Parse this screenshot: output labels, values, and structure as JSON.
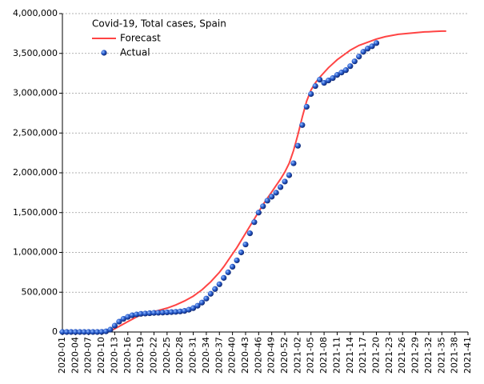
{
  "chart_data": {
    "type": "line",
    "title": "Covid-19, Total cases, Spain",
    "categories": [
      "2020-01",
      null,
      null,
      "2020-04",
      null,
      null,
      "2020-07",
      null,
      null,
      "2020-10",
      null,
      null,
      "2020-13",
      null,
      null,
      "2020-16",
      null,
      null,
      "2020-19",
      null,
      null,
      "2020-22",
      null,
      null,
      "2020-25",
      null,
      null,
      "2020-28",
      null,
      null,
      "2020-31",
      null,
      null,
      "2020-34",
      null,
      null,
      "2020-37",
      null,
      null,
      "2020-40",
      null,
      null,
      "2020-43",
      null,
      null,
      "2020-46",
      null,
      null,
      "2020-49",
      null,
      null,
      "2020-52",
      null,
      null,
      "2021-02",
      null,
      null,
      "2021-05",
      null,
      null,
      "2021-08",
      null,
      null,
      "2021-11",
      null,
      null,
      "2021-14",
      null,
      null,
      "2021-17",
      null,
      null,
      "2021-20",
      null,
      null,
      "2021-23",
      null,
      null,
      "2021-26",
      null,
      null,
      "2021-29",
      null,
      null,
      "2021-32",
      null,
      null,
      "2021-35",
      null,
      null,
      "2021-38",
      null,
      null,
      "2021-41"
    ],
    "series": [
      {
        "name": "Forecast",
        "color": "#ff4444",
        "mark": "line",
        "values": [
          0,
          0,
          0,
          0,
          0,
          0,
          0,
          0,
          0,
          1000,
          5000,
          15000,
          40000,
          70000,
          100000,
          130000,
          160000,
          190000,
          210000,
          225000,
          240000,
          255000,
          270000,
          285000,
          300000,
          320000,
          340000,
          365000,
          390000,
          420000,
          450000,
          490000,
          530000,
          580000,
          630000,
          690000,
          750000,
          820000,
          900000,
          980000,
          1060000,
          1150000,
          1240000,
          1330000,
          1420000,
          1510000,
          1600000,
          1680000,
          1760000,
          1840000,
          1920000,
          2010000,
          2120000,
          2280000,
          2480000,
          2700000,
          2900000,
          3040000,
          3130000,
          3200000,
          3260000,
          3320000,
          3370000,
          3420000,
          3460000,
          3500000,
          3540000,
          3570000,
          3600000,
          3620000,
          3640000,
          3660000,
          3680000,
          3695000,
          3710000,
          3720000,
          3730000,
          3740000,
          3745000,
          3750000,
          3755000,
          3760000,
          3765000,
          3770000,
          3772000,
          3775000,
          3778000,
          3780000,
          3780000,
          null,
          null,
          null,
          null,
          null
        ]
      },
      {
        "name": "Actual",
        "color": "#1f4fbf",
        "mark": "marker",
        "values": [
          0,
          0,
          0,
          0,
          0,
          0,
          0,
          0,
          0,
          2000,
          8000,
          30000,
          80000,
          130000,
          165000,
          190000,
          210000,
          220000,
          228000,
          232000,
          236000,
          240000,
          242000,
          244000,
          247000,
          250000,
          253000,
          258000,
          265000,
          280000,
          300000,
          330000,
          370000,
          420000,
          480000,
          540000,
          600000,
          680000,
          750000,
          820000,
          900000,
          1000000,
          1100000,
          1240000,
          1380000,
          1500000,
          1580000,
          1650000,
          1700000,
          1750000,
          1820000,
          1890000,
          1970000,
          2120000,
          2340000,
          2600000,
          2830000,
          2990000,
          3090000,
          3170000,
          3130000,
          3160000,
          3190000,
          3230000,
          3260000,
          3290000,
          3340000,
          3400000,
          3460000,
          3520000,
          3560000,
          3590000,
          3630000,
          null,
          null,
          null,
          null,
          null,
          null,
          null,
          null,
          null,
          null,
          null,
          null,
          null,
          null,
          null,
          null,
          null,
          null,
          null,
          null,
          null
        ]
      }
    ],
    "ylim": [
      0,
      4000000
    ],
    "yticks": [
      {
        "value": 0,
        "label": "0"
      },
      {
        "value": 500000,
        "label": "500,000"
      },
      {
        "value": 1000000,
        "label": "1,000,000"
      },
      {
        "value": 1500000,
        "label": "1,500,000"
      },
      {
        "value": 2000000,
        "label": "2,000,000"
      },
      {
        "value": 2500000,
        "label": "2,500,000"
      },
      {
        "value": 3000000,
        "label": "3,000,000"
      },
      {
        "value": 3500000,
        "label": "3,500,000"
      },
      {
        "value": 4000000,
        "label": "4,000,000"
      }
    ],
    "grid": true
  }
}
